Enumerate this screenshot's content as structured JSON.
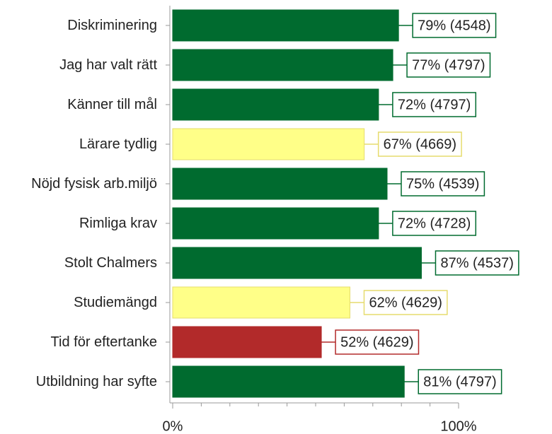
{
  "chart_data": {
    "type": "barh",
    "categories": [
      "Diskriminering",
      "Jag har valt rätt",
      "Känner till mål",
      "Lärare tydlig",
      "Nöjd fysisk arb.miljö",
      "Rimliga krav",
      "Stolt Chalmers",
      "Studiemängd",
      "Tid för eftertanke",
      "Utbildning har syfte"
    ],
    "values": [
      79,
      77,
      72,
      67,
      75,
      72,
      87,
      62,
      52,
      81
    ],
    "value_labels": [
      "79% (4548)",
      "77% (4797)",
      "72% (4797)",
      "67% (4669)",
      "75% (4539)",
      "72% (4728)",
      "87% (4537)",
      "62% (4629)",
      "52% (4629)",
      "81% (4797)"
    ],
    "colors": [
      "#006b2f",
      "#006b2f",
      "#006b2f",
      "#ffff88",
      "#006b2f",
      "#006b2f",
      "#006b2f",
      "#ffff88",
      "#b22a2a",
      "#006b2f"
    ],
    "xlim": [
      0,
      100
    ],
    "xticks": [
      {
        "value": 0,
        "label": "0%"
      },
      {
        "value": 100,
        "label": "100%"
      }
    ],
    "xminorticks": [
      10,
      20,
      30,
      40,
      50,
      60,
      70,
      80,
      90
    ]
  }
}
